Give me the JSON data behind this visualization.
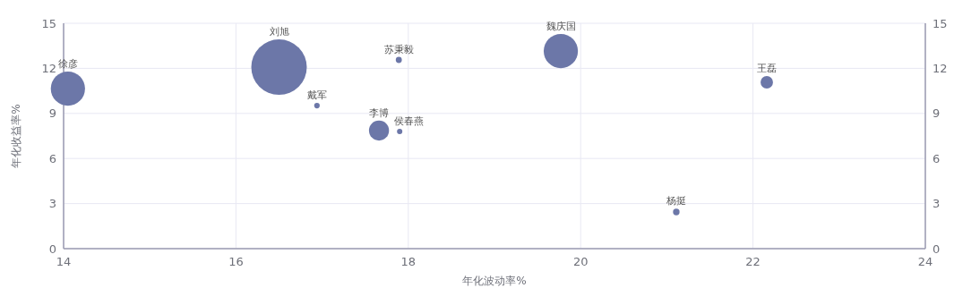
{
  "chart_data": {
    "type": "bubble",
    "xlabel": "年化波动率%",
    "ylabel": "年化收益率%",
    "xlim": [
      14,
      24
    ],
    "xticks": [
      14,
      16,
      18,
      20,
      22,
      24
    ],
    "ylim": [
      0,
      15
    ],
    "yticks": [
      0,
      3,
      6,
      9,
      12,
      15
    ],
    "y2lim": [
      0,
      15
    ],
    "y2ticks": [
      0,
      3,
      6,
      9,
      12,
      15
    ],
    "grid": true,
    "series": [
      {
        "color": "#6c77a8",
        "x": [
          14.05,
          16.5,
          16.94,
          17.89,
          17.66,
          17.9,
          19.77,
          22.16,
          21.11
        ],
        "values": [
          10.65,
          12.08,
          9.52,
          12.56,
          7.86,
          7.8,
          13.15,
          11.07,
          2.44
        ],
        "sizes": [
          0.38,
          1,
          0.01,
          0.012,
          0.13,
          0.009,
          0.38,
          0.05,
          0.014
        ],
        "value_labels": [
          "徐彦",
          "刘旭",
          "戴军",
          "苏秉毅",
          "李博",
          "侯春燕",
          "魏庆国",
          "王磊",
          "杨挺"
        ]
      }
    ]
  }
}
